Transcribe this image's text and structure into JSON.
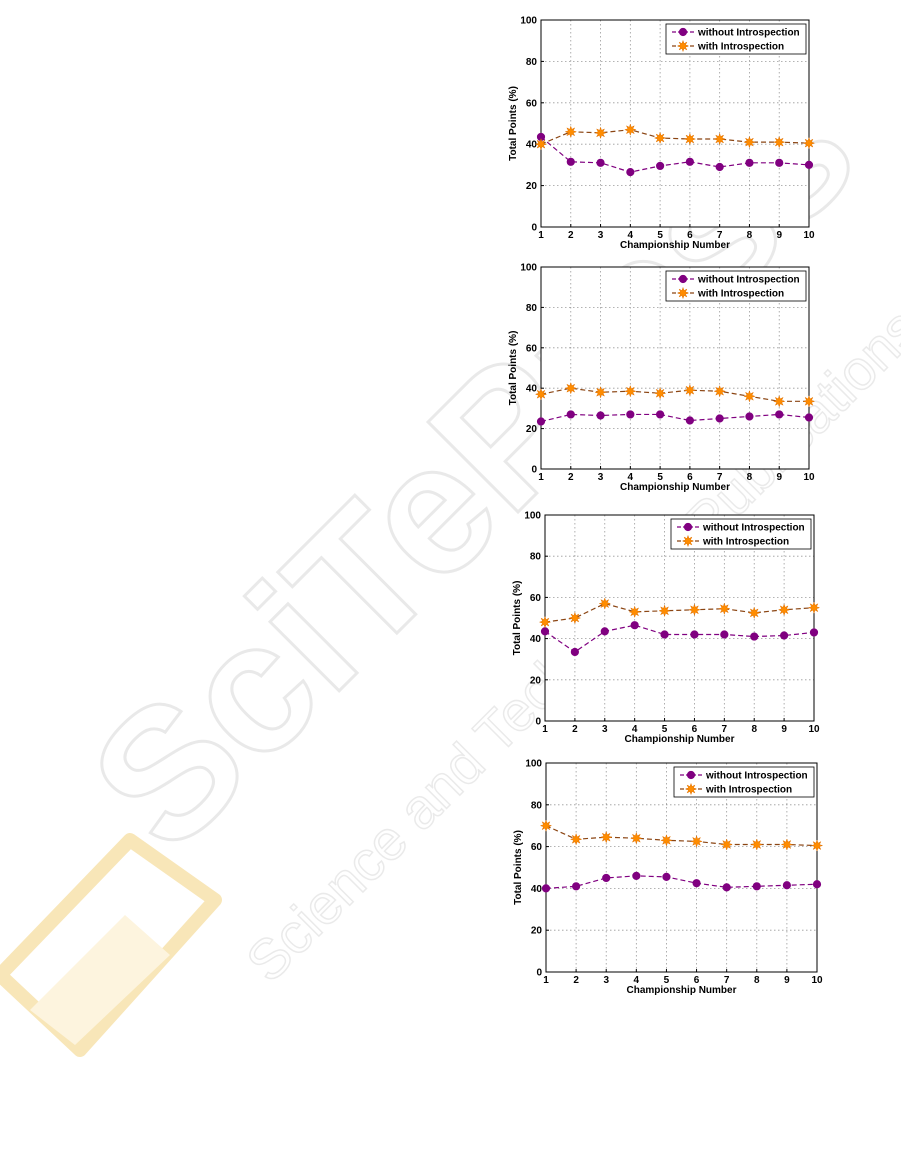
{
  "chart_data": [
    {
      "type": "line",
      "x": [
        1,
        2,
        3,
        4,
        5,
        6,
        7,
        8,
        9,
        10
      ],
      "xlabel": "Championship Number",
      "ylabel": "Total Points (%)",
      "xlim": [
        1,
        10
      ],
      "ylim": [
        0,
        100
      ],
      "yticks": [
        0,
        20,
        40,
        60,
        80,
        100
      ],
      "grid": true,
      "legend": "top-right",
      "series": [
        {
          "name": "without Introspection",
          "color": "#800080",
          "marker": "circle",
          "values": [
            43.5,
            31.5,
            31,
            26.5,
            29.5,
            31.5,
            29,
            31,
            31,
            30
          ]
        },
        {
          "name": "with Introspection",
          "color": "#ff8c00",
          "marker": "star",
          "values": [
            40,
            46,
            45.5,
            47,
            43,
            42.5,
            42.5,
            41,
            41,
            40.5
          ]
        }
      ]
    },
    {
      "type": "line",
      "x": [
        1,
        2,
        3,
        4,
        5,
        6,
        7,
        8,
        9,
        10
      ],
      "xlabel": "Championship Number",
      "ylabel": "Total Points (%)",
      "xlim": [
        1,
        10
      ],
      "ylim": [
        0,
        100
      ],
      "yticks": [
        0,
        20,
        40,
        60,
        80,
        100
      ],
      "grid": true,
      "legend": "top-right",
      "series": [
        {
          "name": "without Introspection",
          "color": "#800080",
          "marker": "circle",
          "values": [
            23.5,
            27,
            26.5,
            27,
            27,
            24,
            25,
            26,
            27,
            25.5
          ]
        },
        {
          "name": "with Introspection",
          "color": "#ff8c00",
          "marker": "star",
          "values": [
            37,
            40,
            38,
            38.5,
            37.5,
            39,
            38.5,
            36,
            33.5,
            33.5
          ]
        }
      ]
    },
    {
      "type": "line",
      "x": [
        1,
        2,
        3,
        4,
        5,
        6,
        7,
        8,
        9,
        10
      ],
      "xlabel": "Championship Number",
      "ylabel": "Total Points (%)",
      "xlim": [
        1,
        10
      ],
      "ylim": [
        0,
        100
      ],
      "yticks": [
        0,
        20,
        40,
        60,
        80,
        100
      ],
      "grid": true,
      "legend": "top-right",
      "series": [
        {
          "name": "without Introspection",
          "color": "#800080",
          "marker": "circle",
          "values": [
            43.5,
            33.5,
            43.5,
            46.5,
            42,
            42,
            42,
            41,
            41.5,
            43
          ]
        },
        {
          "name": "with Introspection",
          "color": "#ff8c00",
          "marker": "star",
          "values": [
            48,
            50,
            57,
            53,
            53.5,
            54,
            54.5,
            52.5,
            54,
            55
          ]
        }
      ]
    },
    {
      "type": "line",
      "x": [
        1,
        2,
        3,
        4,
        5,
        6,
        7,
        8,
        9,
        10
      ],
      "xlabel": "Championship Number",
      "ylabel": "Total Points (%)",
      "xlim": [
        1,
        10
      ],
      "ylim": [
        0,
        100
      ],
      "yticks": [
        0,
        20,
        40,
        60,
        80,
        100
      ],
      "grid": true,
      "legend": "top-right",
      "series": [
        {
          "name": "without Introspection",
          "color": "#800080",
          "marker": "circle",
          "values": [
            40,
            41,
            45,
            46,
            45.5,
            42.5,
            40.5,
            41,
            41.5,
            42
          ]
        },
        {
          "name": "with Introspection",
          "color": "#ff8c00",
          "marker": "star",
          "values": [
            70,
            63.5,
            64.5,
            64,
            63,
            62.5,
            61,
            61,
            61,
            60.5
          ]
        }
      ]
    }
  ],
  "watermark": {
    "text": "SciTePress",
    "subtitle": "Science and Technology Publications",
    "color": "#e6e6e6",
    "logo_color": "#f8e6b8"
  }
}
